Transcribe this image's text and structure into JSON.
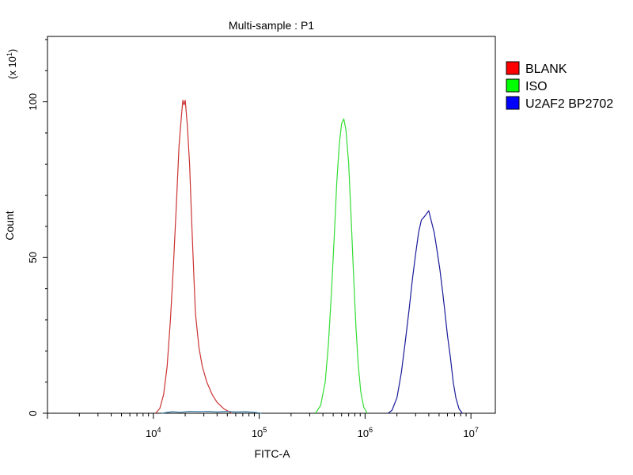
{
  "chart_data": {
    "type": "line",
    "title": "Multi-sample : P1",
    "xlabel": "FITC-A",
    "ylabel": "Count",
    "y_multiplier": "(x 10",
    "y_multiplier_exp": "1",
    "y_multiplier_close": ")",
    "x_scale": "log",
    "xlim": [
      1000,
      17000000
    ],
    "ylim": [
      0,
      12.1
    ],
    "x_ticks": [
      {
        "value": 10000,
        "base": "10",
        "exp": "4"
      },
      {
        "value": 100000,
        "base": "10",
        "exp": "5"
      },
      {
        "value": 1000000,
        "base": "10",
        "exp": "6"
      },
      {
        "value": 10000000,
        "base": "10",
        "exp": "7"
      }
    ],
    "y_ticks": [
      {
        "value": 0,
        "label": "0"
      },
      {
        "value": 5,
        "label": "50"
      },
      {
        "value": 10,
        "label": "100"
      }
    ],
    "y_minor_step": 1,
    "grid": false,
    "legend_position": "right",
    "series": [
      {
        "name": "BLANK",
        "color": "#cc3333",
        "swatch": "#ff0000",
        "points": [
          [
            10500,
            0
          ],
          [
            11500,
            0.15
          ],
          [
            12500,
            0.6
          ],
          [
            13500,
            1.5
          ],
          [
            14500,
            3.0
          ],
          [
            15500,
            4.8
          ],
          [
            16500,
            6.7
          ],
          [
            17500,
            8.6
          ],
          [
            18500,
            9.6
          ],
          [
            19000,
            10.05
          ],
          [
            19500,
            9.9
          ],
          [
            20000,
            10.05
          ],
          [
            21000,
            9.2
          ],
          [
            22000,
            8.0
          ],
          [
            23000,
            6.2
          ],
          [
            24000,
            4.6
          ],
          [
            25000,
            3.2
          ],
          [
            27000,
            2.1
          ],
          [
            29000,
            1.5
          ],
          [
            32000,
            1.0
          ],
          [
            36000,
            0.6
          ],
          [
            40000,
            0.35
          ],
          [
            46000,
            0.15
          ],
          [
            52000,
            0.05
          ],
          [
            55000,
            0
          ]
        ]
      },
      {
        "name": "ISO",
        "color": "#33dd33",
        "swatch": "#00ff00",
        "points": [
          [
            340000,
            0
          ],
          [
            380000,
            0.25
          ],
          [
            420000,
            1.0
          ],
          [
            450000,
            2.2
          ],
          [
            480000,
            3.8
          ],
          [
            510000,
            5.6
          ],
          [
            540000,
            7.4
          ],
          [
            570000,
            8.6
          ],
          [
            600000,
            9.3
          ],
          [
            630000,
            9.45
          ],
          [
            660000,
            9.1
          ],
          [
            700000,
            8.0
          ],
          [
            740000,
            6.2
          ],
          [
            780000,
            4.4
          ],
          [
            820000,
            2.8
          ],
          [
            860000,
            1.6
          ],
          [
            910000,
            0.7
          ],
          [
            970000,
            0.2
          ],
          [
            1050000,
            0
          ]
        ]
      },
      {
        "name": "U2AF2 BP2702",
        "color": "#1a1a99",
        "swatch": "#0000ff",
        "points": [
          [
            1650000,
            0
          ],
          [
            1800000,
            0.1
          ],
          [
            2000000,
            0.5
          ],
          [
            2200000,
            1.3
          ],
          [
            2400000,
            2.3
          ],
          [
            2600000,
            3.3
          ],
          [
            2800000,
            4.3
          ],
          [
            3000000,
            5.1
          ],
          [
            3200000,
            5.8
          ],
          [
            3400000,
            6.2
          ],
          [
            3600000,
            6.3
          ],
          [
            3800000,
            6.4
          ],
          [
            4000000,
            6.5
          ],
          [
            4200000,
            6.2
          ],
          [
            4500000,
            5.8
          ],
          [
            4800000,
            5.2
          ],
          [
            5100000,
            4.6
          ],
          [
            5400000,
            3.9
          ],
          [
            5700000,
            3.2
          ],
          [
            6000000,
            2.5
          ],
          [
            6400000,
            1.8
          ],
          [
            6800000,
            1.0
          ],
          [
            7200000,
            0.5
          ],
          [
            7700000,
            0.15
          ],
          [
            8300000,
            0
          ]
        ]
      },
      {
        "name": "",
        "color": "#3a78a0",
        "swatch": "",
        "points": [
          [
            12000,
            0
          ],
          [
            15000,
            0.05
          ],
          [
            18000,
            0.03
          ],
          [
            22000,
            0.06
          ],
          [
            27000,
            0.05
          ],
          [
            33000,
            0.06
          ],
          [
            40000,
            0.04
          ],
          [
            50000,
            0.06
          ],
          [
            60000,
            0.04
          ],
          [
            75000,
            0.05
          ],
          [
            90000,
            0.03
          ],
          [
            105000,
            0
          ]
        ]
      }
    ]
  }
}
